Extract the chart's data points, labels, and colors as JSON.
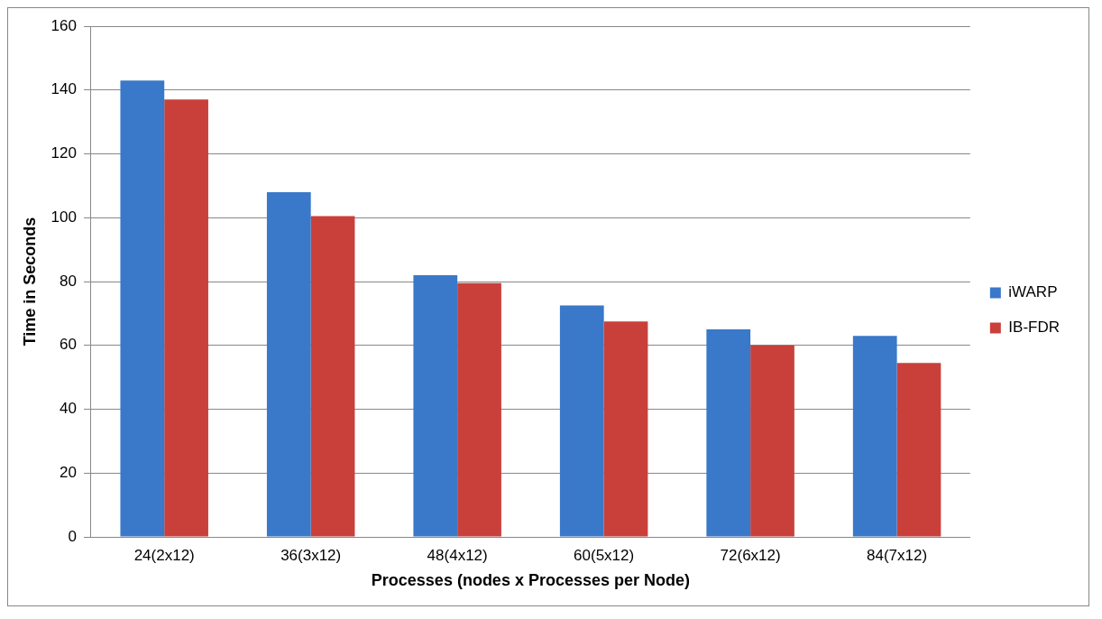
{
  "chart_data": {
    "type": "bar",
    "xlabel": "Processes (nodes x Processes per Node)",
    "ylabel": "Time in Seconds",
    "categories": [
      "24(2x12)",
      "36(3x12)",
      "48(4x12)",
      "60(5x12)",
      "72(6x12)",
      "84(7x12)"
    ],
    "series": [
      {
        "name": "iWARP",
        "color": "#3a78c9",
        "values": [
          143,
          108,
          82,
          72.5,
          65,
          63
        ]
      },
      {
        "name": "IB-FDR",
        "color": "#c9403b",
        "values": [
          137,
          100.5,
          79.5,
          67.5,
          60,
          54.5
        ]
      }
    ],
    "ylim": [
      0,
      160
    ],
    "yticks": [
      0,
      20,
      40,
      60,
      80,
      100,
      120,
      140,
      160
    ],
    "grid": "y",
    "legend": "right"
  }
}
